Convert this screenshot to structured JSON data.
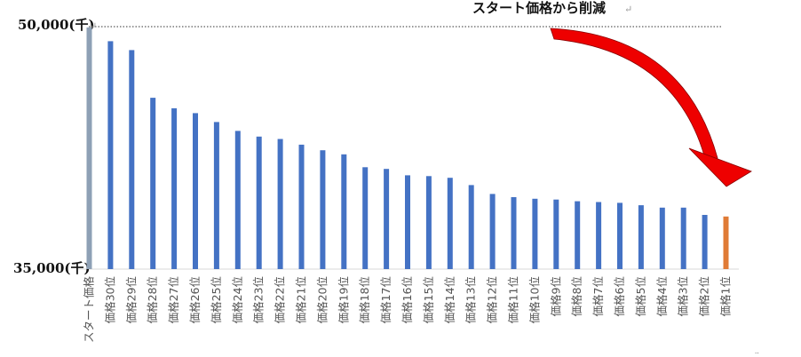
{
  "chart_data": {
    "type": "bar",
    "title": "スタート価格から削減",
    "y_top_label": "50,000(千)",
    "y_bottom_label": "35,000(千)",
    "ylim": [
      35000,
      50000
    ],
    "categories": [
      "スタート価格",
      "価格30位",
      "価格29位",
      "価格28位",
      "価格27位",
      "価格26位",
      "価格25位",
      "価格24位",
      "価格23位",
      "価格22位",
      "価格21位",
      "価格20位",
      "価格19位",
      "価格18位",
      "価格17位",
      "価格16位",
      "価格15位",
      "価格14位",
      "価格13位",
      "価格12位",
      "価格11位",
      "価格10位",
      "価格9位",
      "価格8位",
      "価格7位",
      "価格6位",
      "価格5位",
      "価格4位",
      "価格3位",
      "価格2位",
      "価格1位"
    ],
    "values": [
      49950,
      49100,
      48550,
      45600,
      44950,
      44650,
      44100,
      43550,
      43200,
      43050,
      42700,
      42350,
      42100,
      41300,
      41200,
      40800,
      40750,
      40650,
      40200,
      39650,
      39450,
      39350,
      39300,
      39200,
      39150,
      39100,
      38950,
      38800,
      38800,
      38350,
      38250
    ],
    "colors": {
      "start": "#8ea0b5",
      "middle": "#4472c4",
      "final": "#e07b36",
      "arrow": "#ee0000"
    },
    "grid": false,
    "legend": "none"
  }
}
